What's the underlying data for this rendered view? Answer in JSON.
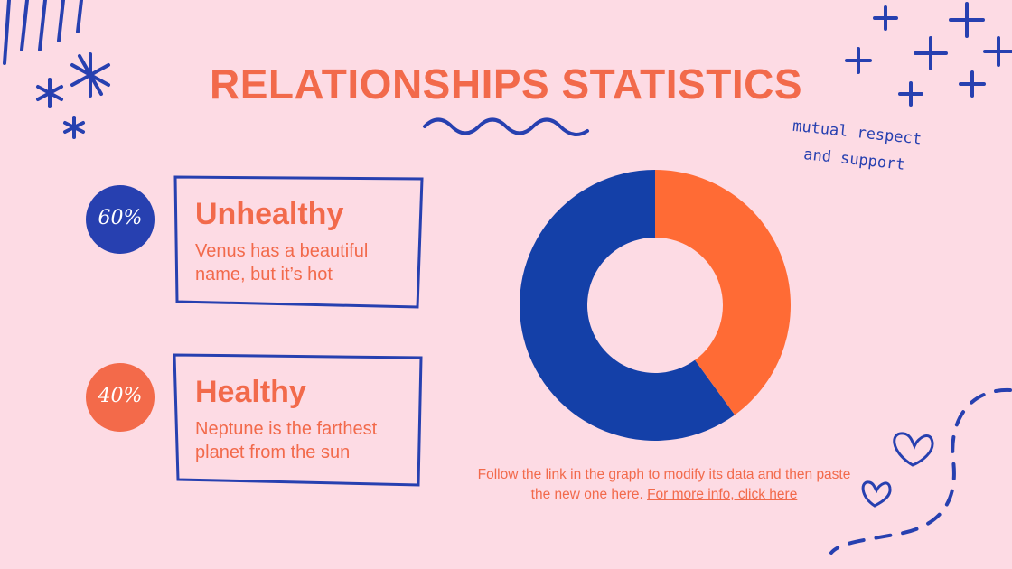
{
  "title": "RELATIONSHIPS STATISTICS",
  "note": [
    "mutual respect",
    "and support"
  ],
  "chart_data": {
    "type": "pie",
    "categories": [
      "Unhealthy",
      "Healthy"
    ],
    "values": [
      60,
      40
    ],
    "value_labels": [
      "60%",
      "40%"
    ],
    "colors": [
      "#1440a8",
      "#ff6b35"
    ],
    "donut": true
  },
  "descriptions": [
    "Venus has a beautiful name, but it’s hot",
    "Neptune is the farthest planet from the sun"
  ],
  "footer": {
    "text": "Follow the link in the graph to modify its data and then paste the new one here.",
    "link": "For more info, click here"
  }
}
